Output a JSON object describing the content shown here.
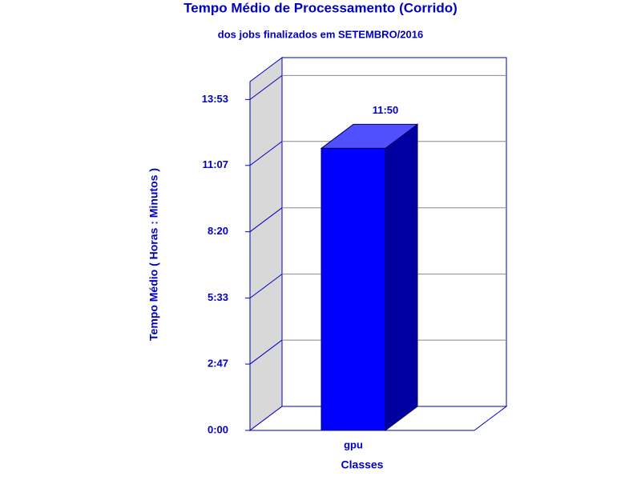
{
  "chart_data": {
    "type": "bar",
    "title": "Tempo Médio de Processamento (Corrido)",
    "subtitle": "dos jobs finalizados em SETEMBRO/2016",
    "x_label": "Classes",
    "y_label": "Tempo Médio ( Horas : Minutos )",
    "categories": [
      "gpu"
    ],
    "values": [
      710
    ],
    "value_labels": [
      "11:50"
    ],
    "color": "#0000ff",
    "ylim": [
      0,
      878
    ],
    "yticks": [
      {
        "value": 0,
        "label": "0:00"
      },
      {
        "value": 167,
        "label": "2:47"
      },
      {
        "value": 333,
        "label": "5:33"
      },
      {
        "value": 500,
        "label": "8:20"
      },
      {
        "value": 667,
        "label": "11:07"
      },
      {
        "value": 833,
        "label": "13:53"
      }
    ],
    "grid": true
  }
}
